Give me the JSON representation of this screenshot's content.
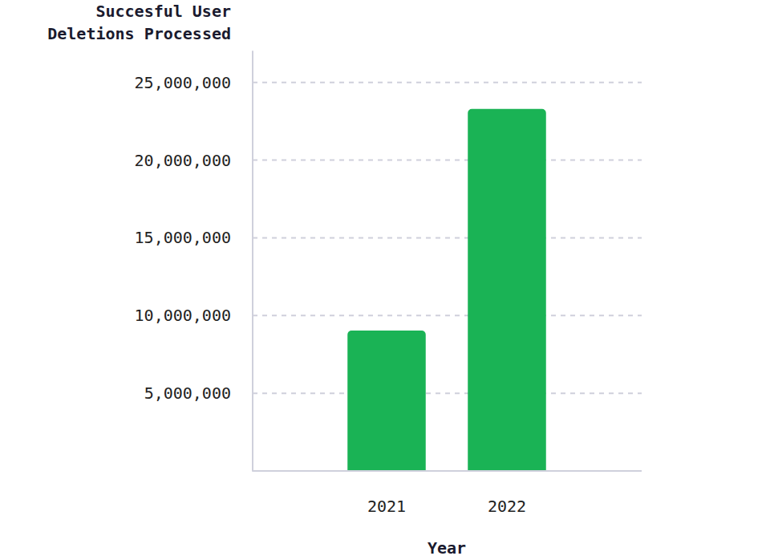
{
  "chart_data": {
    "type": "bar",
    "y_label": "Succesful User\nDeletions Processed",
    "x_label": "Year",
    "categories": [
      "2021",
      "2022"
    ],
    "values": [
      9030000,
      23300000
    ],
    "color": "#1ab355",
    "ylim": [
      0,
      27000000
    ],
    "yticks": [
      {
        "value": 5000000,
        "label": "5,000,000"
      },
      {
        "value": 10000000,
        "label": "10,000,000"
      },
      {
        "value": 15000000,
        "label": "15,000,000"
      },
      {
        "value": 20000000,
        "label": "20,000,000"
      },
      {
        "value": 25000000,
        "label": "25,000,000"
      }
    ],
    "grid": true
  }
}
